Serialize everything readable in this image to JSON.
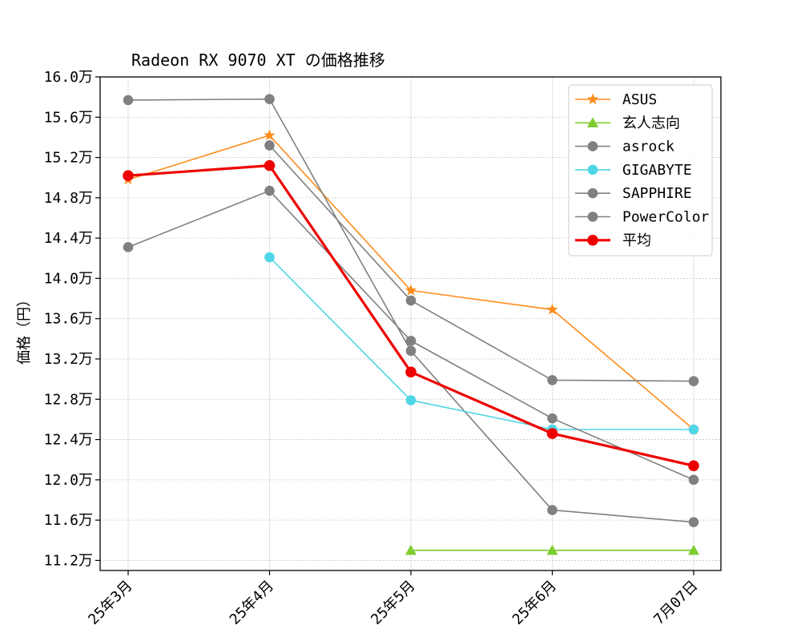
{
  "chart_data": {
    "type": "line",
    "title": "Radeon RX 9070 XT の価格推移",
    "ylabel": "価格（円）",
    "xlabel": "",
    "categories": [
      "25年3月",
      "25年4月",
      "25年5月",
      "25年6月",
      "7月07日"
    ],
    "ylim": [
      11.1,
      16.0
    ],
    "yticks": [
      11.2,
      11.6,
      12.0,
      12.4,
      12.8,
      13.2,
      13.6,
      14.0,
      14.4,
      14.8,
      15.2,
      15.6,
      16.0
    ],
    "ytick_labels": [
      "11.2万",
      "11.6万",
      "12.0万",
      "12.4万",
      "12.8万",
      "13.2万",
      "13.6万",
      "14.0万",
      "14.4万",
      "14.8万",
      "15.2万",
      "15.6万",
      "16.0万"
    ],
    "grid": true,
    "legend_position": "top-right",
    "series": [
      {
        "name": "ASUS",
        "color": "#ff8c1a",
        "marker": "star",
        "values": [
          14.98,
          15.42,
          13.88,
          13.69,
          12.5
        ]
      },
      {
        "name": "玄人志向",
        "color": "#7ccd2e",
        "marker": "triangle",
        "values": [
          null,
          null,
          11.3,
          11.3,
          11.3
        ]
      },
      {
        "name": "asrock",
        "color": "#808080",
        "marker": "circle",
        "values": [
          15.77,
          15.78,
          13.28,
          11.7,
          11.58
        ]
      },
      {
        "name": "GIGABYTE",
        "color": "#4ed6e6",
        "marker": "circle",
        "values": [
          null,
          14.21,
          12.79,
          12.5,
          12.5
        ]
      },
      {
        "name": "SAPPHIRE",
        "color": "#808080",
        "marker": "circle",
        "values": [
          14.31,
          14.87,
          13.38,
          12.61,
          12.0
        ]
      },
      {
        "name": "PowerColor",
        "color": "#808080",
        "marker": "circle",
        "values": [
          null,
          15.32,
          13.78,
          12.99,
          12.98
        ]
      },
      {
        "name": "平均",
        "color": "#ee0000",
        "marker": "circle",
        "bold": true,
        "values": [
          15.02,
          15.12,
          13.07,
          12.46,
          12.14
        ]
      }
    ]
  }
}
